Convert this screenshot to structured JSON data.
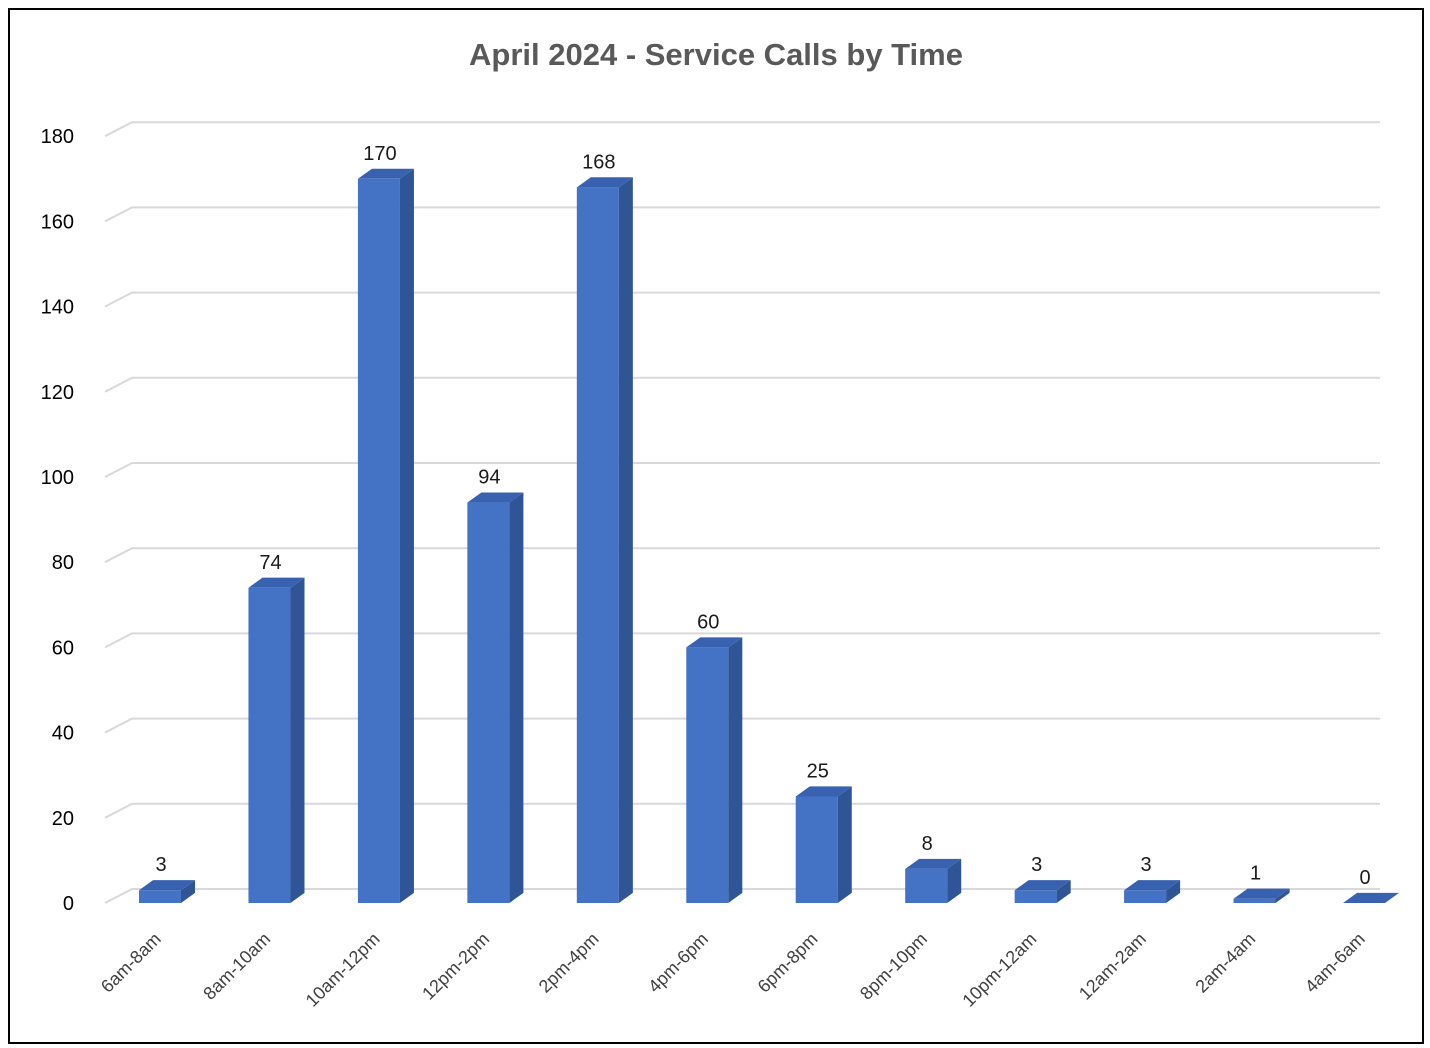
{
  "chart_data": {
    "type": "bar",
    "title": "April 2024 - Service Calls by Time",
    "xlabel": "",
    "ylabel": "",
    "ylim": [
      0,
      180
    ],
    "yticks": [
      0,
      20,
      40,
      60,
      80,
      100,
      120,
      140,
      160,
      180
    ],
    "grid": true,
    "legend": "none",
    "style": "3d-column",
    "categories": [
      "6am-8am",
      "8am-10am",
      "10am-12pm",
      "12pm-2pm",
      "2pm-4pm",
      "4pm-6pm",
      "6pm-8pm",
      "8pm-10pm",
      "10pm-12am",
      "12am-2am",
      "2am-4am",
      "4am-6am"
    ],
    "values": [
      3,
      74,
      170,
      94,
      168,
      60,
      25,
      8,
      3,
      3,
      1,
      0
    ],
    "colors": {
      "bar_front": "#4472c4",
      "bar_side": "#2f5597",
      "bar_top": "#3862b0",
      "grid": "#d9d9d9",
      "title": "#595959"
    }
  }
}
